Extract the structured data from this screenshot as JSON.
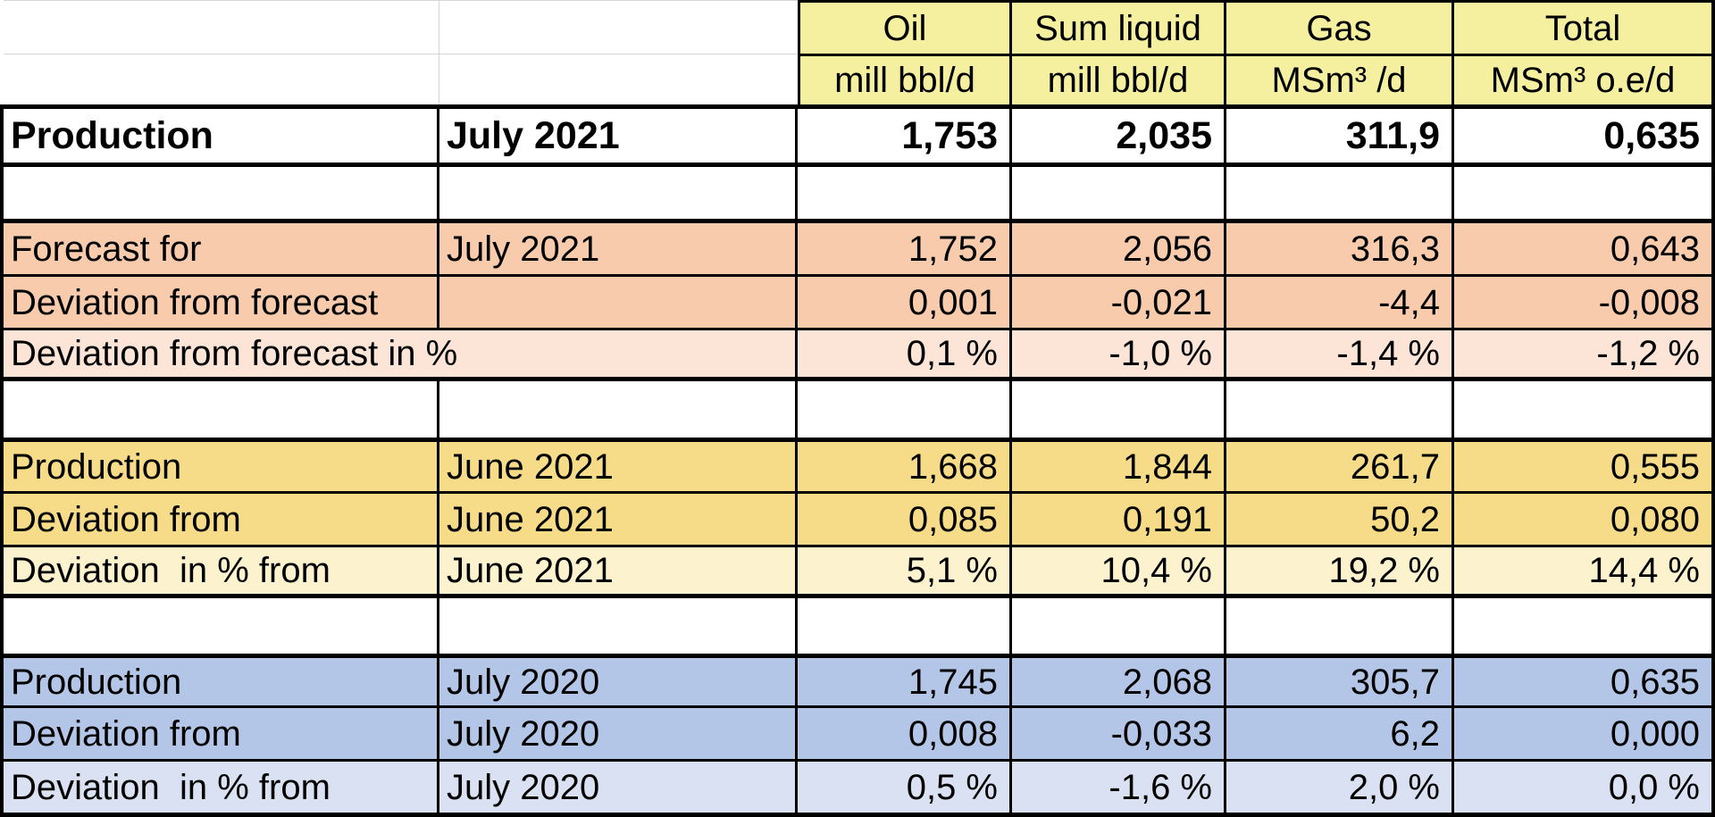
{
  "app": "spreadsheet-production-report",
  "colors": {
    "header_fill": "#F4F0A0",
    "forecast_fill": "#F8CBAD",
    "forecast_light_fill": "#FCE4D6",
    "prior_month_fill": "#F6DB88",
    "prior_month_light_fill": "#FCF2CD",
    "prior_year_fill": "#B4C6E7",
    "prior_year_light_fill": "#D9E1F2",
    "grid_border": "#000000",
    "faint_gridline": "#D6D6D6",
    "text": "#000000"
  },
  "table": {
    "column_keys": [
      "label",
      "period",
      "oil",
      "sum-liquid",
      "gas",
      "total"
    ],
    "rows": [
      {
        "type": "column-header",
        "cells": [
          "",
          "",
          "Oil",
          "Sum liquid",
          "Gas",
          "Total"
        ]
      },
      {
        "type": "unit-header",
        "cells": [
          "",
          "",
          "mill bbl/d",
          "mill bbl/d",
          "MSm³ /d",
          "MSm³ o.e/d"
        ]
      },
      {
        "type": "production-current",
        "bold": true,
        "cells": [
          "Production",
          "July 2021",
          "1,753",
          "2,035",
          "311,9",
          "0,635"
        ]
      },
      {
        "type": "spacer",
        "cells": [
          "",
          "",
          "",
          "",
          "",
          ""
        ]
      },
      {
        "type": "section-row",
        "section": "forecast",
        "shade": "strong",
        "cells": [
          "Forecast for",
          "July 2021",
          "1,752",
          "2,056",
          "316,3",
          "0,643"
        ]
      },
      {
        "type": "section-row",
        "section": "forecast",
        "shade": "strong",
        "cells": [
          "Deviation from forecast",
          "",
          "0,001",
          "-0,021",
          "-4,4",
          "-0,008"
        ]
      },
      {
        "type": "section-row",
        "section": "forecast",
        "shade": "light",
        "merged_label": true,
        "cells": [
          "Deviation from forecast in %",
          "",
          "0,1 %",
          "-1,0 %",
          "-1,4 %",
          "-1,2 %"
        ]
      },
      {
        "type": "spacer",
        "cells": [
          "",
          "",
          "",
          "",
          "",
          ""
        ]
      },
      {
        "type": "section-row",
        "section": "prior_month",
        "shade": "strong",
        "cells": [
          "Production",
          "June 2021",
          "1,668",
          "1,844",
          "261,7",
          "0,555"
        ]
      },
      {
        "type": "section-row",
        "section": "prior_month",
        "shade": "strong",
        "cells": [
          "Deviation from",
          "June 2021",
          "0,085",
          "0,191",
          "50,2",
          "0,080"
        ]
      },
      {
        "type": "section-row",
        "section": "prior_month",
        "shade": "light",
        "cells": [
          "Deviation  in % from",
          "June 2021",
          "5,1 %",
          "10,4 %",
          "19,2 %",
          "14,4 %"
        ]
      },
      {
        "type": "spacer",
        "cells": [
          "",
          "",
          "",
          "",
          "",
          ""
        ]
      },
      {
        "type": "section-row",
        "section": "prior_year",
        "shade": "strong",
        "cells": [
          "Production",
          "July 2020",
          "1,745",
          "2,068",
          "305,7",
          "0,635"
        ]
      },
      {
        "type": "section-row",
        "section": "prior_year",
        "shade": "strong",
        "cells": [
          "Deviation from",
          "July 2020",
          "0,008",
          "-0,033",
          "6,2",
          "0,000"
        ]
      },
      {
        "type": "section-row",
        "section": "prior_year",
        "shade": "light",
        "cells": [
          "Deviation  in % from",
          "July 2020",
          "0,5 %",
          "-1,6 %",
          "2,0 %",
          "0,0 %"
        ]
      }
    ]
  }
}
